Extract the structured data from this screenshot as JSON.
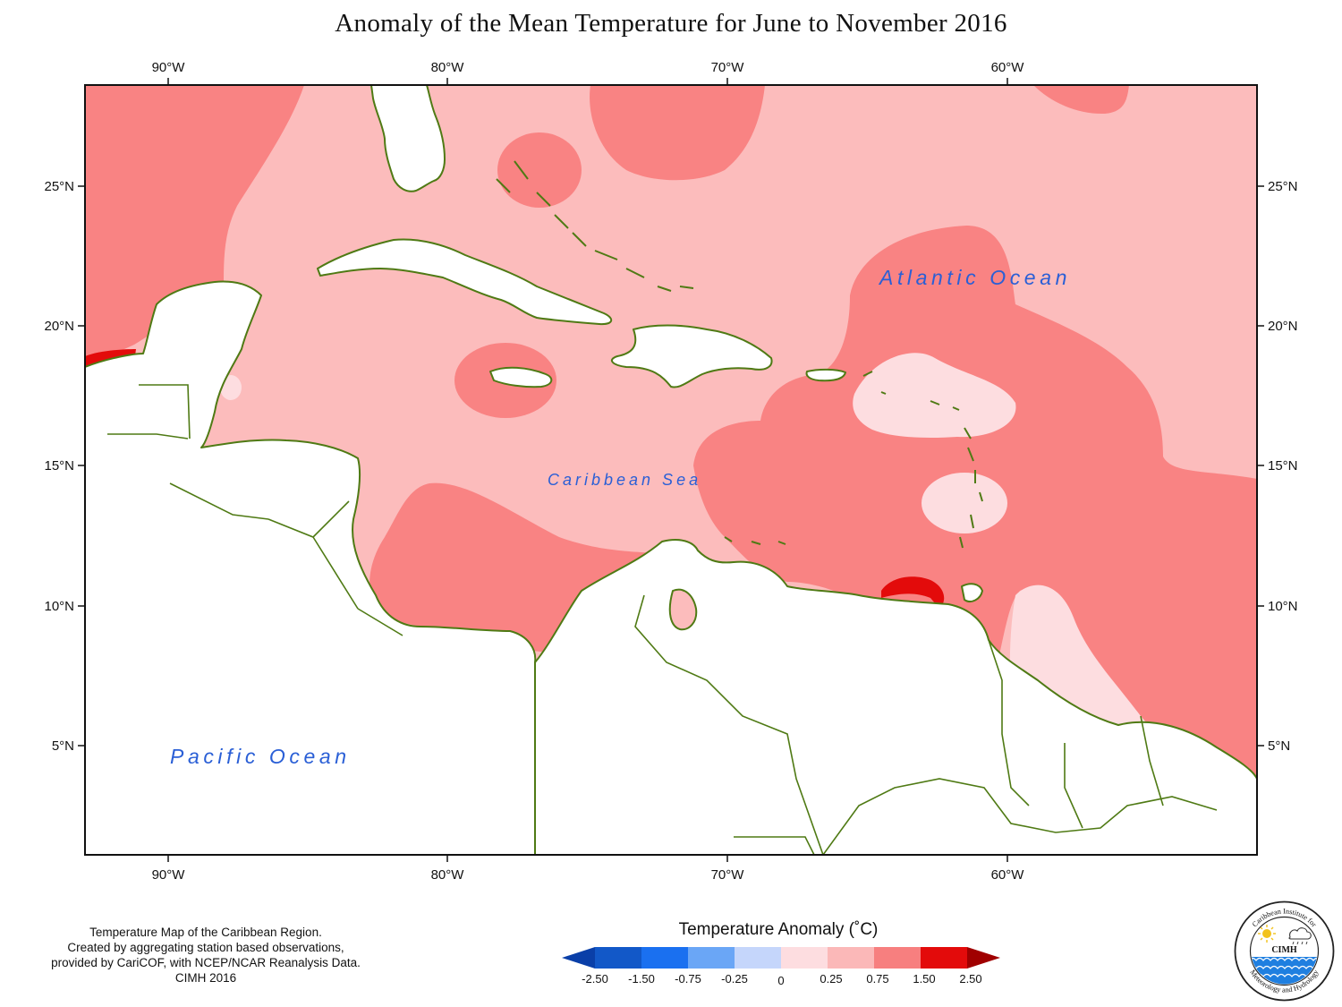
{
  "title": "Anomaly of the Mean Temperature for June to November 2016",
  "axes": {
    "top": [
      "90°W",
      "80°W",
      "70°W",
      "60°W"
    ],
    "bottom": [
      "90°W",
      "80°W",
      "70°W",
      "60°W"
    ],
    "left": [
      "25°N",
      "20°N",
      "15°N",
      "10°N",
      "5°N"
    ],
    "right": [
      "25°N",
      "20°N",
      "15°N",
      "10°N",
      "5°N"
    ]
  },
  "labels": {
    "atlantic": "Atlantic Ocean",
    "caribbean": "Caribbean Sea",
    "pacific": "Pacific Ocean"
  },
  "credit": {
    "line1": "Temperature Map of the Caribbean Region.",
    "line2": "Created by aggregating station based observations,",
    "line3": "provided by CariCOF, with NCEP/NCAR Reanalysis Data.",
    "line4": "CIMH 2016"
  },
  "legend": {
    "title": "Temperature Anomaly (˚C)",
    "ticks": [
      "-2.50",
      "-1.50",
      "-0.75",
      "-0.25",
      "0",
      "0.25",
      "0.75",
      "1.50",
      "2.50"
    ],
    "colors": [
      "#0a3fa8",
      "#1a70f0",
      "#4a95f5",
      "#8fbaf8",
      "#c5d6fb",
      "#fddde0",
      "#fbb8b8",
      "#f77f7f",
      "#e30b0b",
      "#a00000"
    ]
  },
  "logo": {
    "top_text": "Caribbean Institute for",
    "bottom_text": "Meteorology and Hydrology",
    "center_text": "CIMH"
  },
  "palette": {
    "land_outline": "#4f7a14",
    "light_pink": "#fcbcbc",
    "mid_pink": "#f98383",
    "pale_pink": "#fddde0",
    "red": "#e30b0b"
  }
}
